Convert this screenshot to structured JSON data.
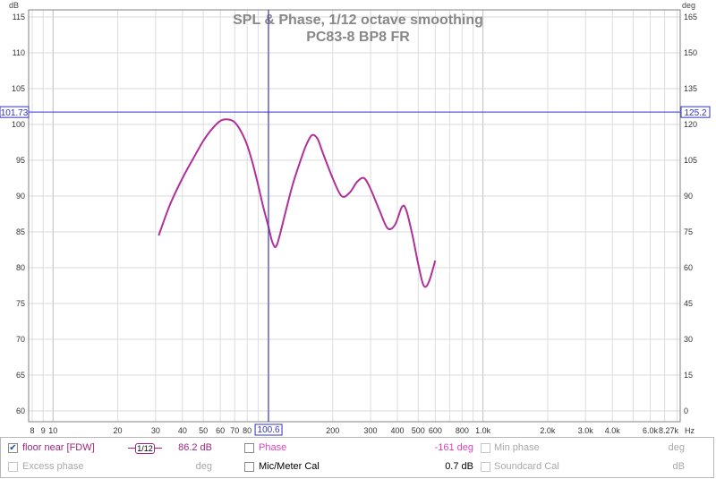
{
  "chart_data": {
    "type": "line",
    "title": "SPL & Phase, 1/12 octave smoothing",
    "subtitle": "PC83-8 BP8 FR",
    "x_scale": "log",
    "xlim": [
      7.7,
      8270
    ],
    "ylim": [
      58.5,
      116
    ],
    "y2lim": [
      -4.5,
      168
    ],
    "y_unit": "dB",
    "y2_unit": "deg",
    "x_unit": "Hz",
    "x_tick_labels": [
      {
        "v": 8,
        "t": "8"
      },
      {
        "v": 9,
        "t": "9"
      },
      {
        "v": 10,
        "t": "10"
      },
      {
        "v": 20,
        "t": "20"
      },
      {
        "v": 30,
        "t": "30"
      },
      {
        "v": 40,
        "t": "40"
      },
      {
        "v": 50,
        "t": "50"
      },
      {
        "v": 60,
        "t": "60"
      },
      {
        "v": 70,
        "t": "70"
      },
      {
        "v": 80,
        "t": "80"
      },
      {
        "v": 200,
        "t": "200"
      },
      {
        "v": 300,
        "t": "300"
      },
      {
        "v": 400,
        "t": "400"
      },
      {
        "v": 500,
        "t": "500"
      },
      {
        "v": 600,
        "t": "600"
      },
      {
        "v": 800,
        "t": "800"
      },
      {
        "v": 1000,
        "t": "1.0k"
      },
      {
        "v": 2000,
        "t": "2.0k"
      },
      {
        "v": 3000,
        "t": "3.0k"
      },
      {
        "v": 4000,
        "t": "4.0k"
      },
      {
        "v": 6000,
        "t": "6.0k"
      }
    ],
    "x_end_label": "8.27k",
    "y_ticks": [
      60,
      65,
      70,
      75,
      80,
      85,
      90,
      95,
      100,
      105,
      110,
      115
    ],
    "y2_ticks": [
      0,
      15,
      30,
      45,
      60,
      75,
      90,
      105,
      120,
      135,
      150,
      165
    ],
    "series": [
      {
        "name": "floor near [FDW]",
        "color": "#b0309a",
        "x": [
          31,
          35,
          40,
          45,
          50,
          55,
          60,
          65,
          70,
          75,
          80,
          85,
          90,
          95,
          100,
          105,
          110,
          120,
          130,
          140,
          150,
          160,
          170,
          180,
          200,
          220,
          240,
          260,
          280,
          300,
          330,
          360,
          390,
          420,
          440,
          470,
          500,
          530,
          560,
          600
        ],
        "y": [
          84.5,
          88.8,
          92.5,
          95.3,
          97.7,
          99.4,
          100.5,
          100.7,
          100.3,
          99.0,
          97.1,
          94.5,
          91.5,
          88.5,
          86.0,
          83.5,
          83.2,
          87.5,
          91.5,
          94.5,
          97.0,
          98.5,
          98.0,
          96.0,
          92.5,
          90.0,
          90.5,
          92.0,
          92.5,
          91.0,
          88.0,
          85.5,
          86.0,
          88.5,
          88.0,
          84.5,
          80.5,
          77.5,
          78.0,
          81.0
        ]
      }
    ],
    "cursor": {
      "x": 100.6,
      "x_label": "100.6",
      "y": 101.73,
      "y_label": "101.73",
      "y2_label": "125.2"
    }
  },
  "legend": {
    "row1": [
      {
        "checked": true,
        "label": "floor near [FDW]",
        "smoothing": "1/12",
        "value": "86.2 dB"
      },
      {
        "checked": false,
        "label": "Phase",
        "value": "-161 deg"
      },
      {
        "checked": false,
        "label": "Min phase",
        "value": "deg"
      }
    ],
    "row2": [
      {
        "checked": false,
        "label": "Excess phase",
        "value": "deg"
      },
      {
        "checked": false,
        "label": "Mic/Meter Cal",
        "value": "0.7 dB"
      },
      {
        "checked": false,
        "label": "Soundcard Cal",
        "value": "dB"
      }
    ]
  },
  "colors": {
    "spl": "#b0309a",
    "phase": "#e040c0",
    "cursor": "#3232c8",
    "grid": "#d8d8d8",
    "title": "#888888",
    "disabled": "#a8a8a8"
  }
}
